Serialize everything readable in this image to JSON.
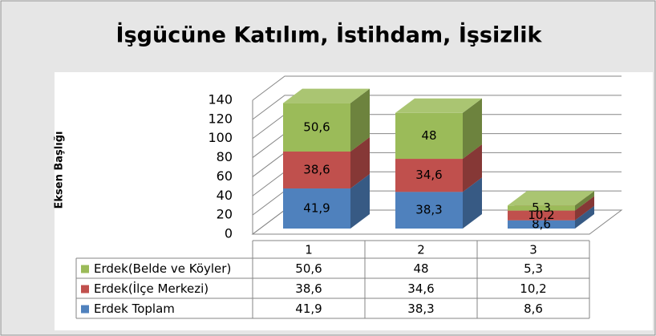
{
  "chart_data": {
    "type": "bar3d_stacked",
    "title": "İşgücüne Katılım, İstihdam, İşsizlik",
    "ylabel": "Eksen Başlığı",
    "categories": [
      "1",
      "2",
      "3"
    ],
    "series": [
      {
        "name": "Erdek Toplam",
        "color": "#4f81bd",
        "values": [
          41.9,
          38.3,
          8.6
        ],
        "value_labels": [
          "41,9",
          "38,3",
          "8,6"
        ]
      },
      {
        "name": "Erdek(İlçe Merkezi)",
        "color": "#c0504d",
        "values": [
          38.6,
          34.6,
          10.2
        ],
        "value_labels": [
          "38,6",
          "34,6",
          "10,2"
        ]
      },
      {
        "name": "Erdek(Belde ve Köyler)",
        "color": "#9bbb59",
        "values": [
          50.6,
          48,
          5.3
        ],
        "value_labels": [
          "50,6",
          "48",
          "5,3"
        ]
      }
    ],
    "ylim": [
      0,
      140
    ],
    "yticks": [
      0,
      20,
      40,
      60,
      80,
      100,
      120,
      140
    ],
    "grid": true,
    "data_table": true
  }
}
